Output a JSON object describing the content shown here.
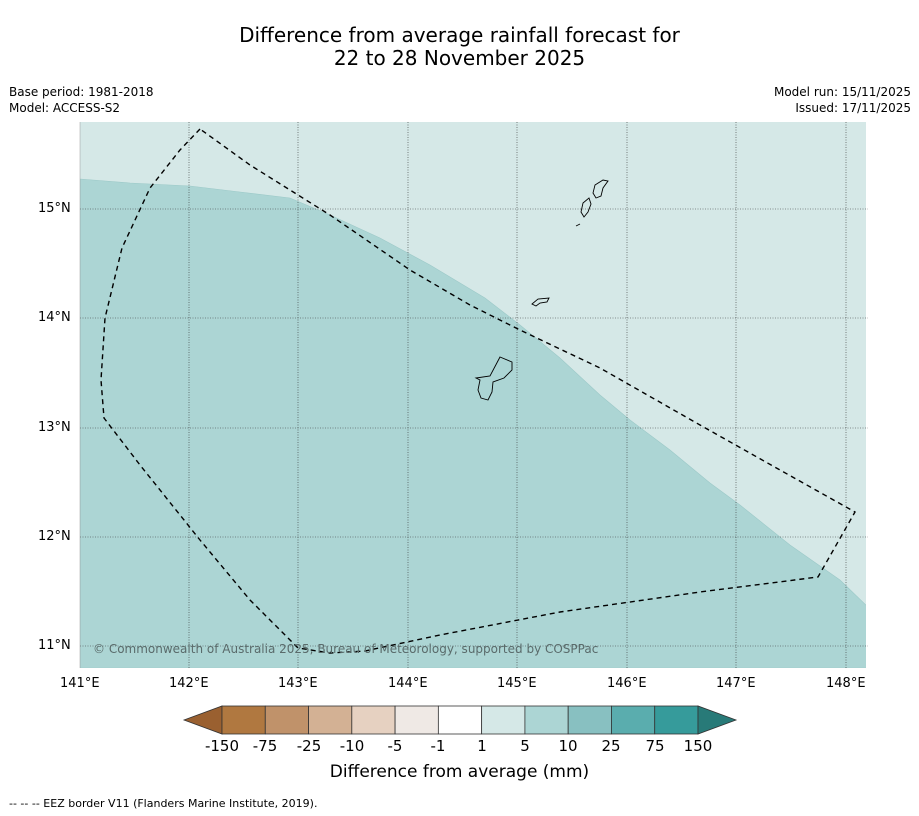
{
  "title_line1": "Difference from average rainfall forecast for",
  "title_line2": "22 to 28 November 2025",
  "base_period": "Base period: 1981-2018",
  "model": "Model: ACCESS-S2",
  "model_run": "Model run: 15/11/2025",
  "issued": "Issued: 17/11/2025",
  "copyright": "© Commonwealth of Australia 2025, Bureau of Meteorology, supported by COSPPac",
  "map": {
    "lon_labels": [
      "141°E",
      "142°E",
      "143°E",
      "144°E",
      "145°E",
      "146°E",
      "147°E",
      "148°E"
    ],
    "lat_labels": [
      "15°N",
      "14°N",
      "13°N",
      "12°N",
      "11°N"
    ],
    "lon_range": [
      141,
      148.2
    ],
    "lat_range": [
      10.8,
      15.8
    ],
    "regions": [
      {
        "category": "1 to 5",
        "color": "#d5e8e7"
      },
      {
        "category": "5 to 10",
        "color": "#acd5d4"
      }
    ]
  },
  "colorbar": {
    "labels": [
      "-150",
      "-75",
      "-25",
      "-10",
      "-5",
      "-1",
      "1",
      "5",
      "10",
      "25",
      "75",
      "150"
    ],
    "colors": [
      "#b07840",
      "#c0926a",
      "#d3b194",
      "#e6d1c1",
      "#efe9e5",
      "#ffffff",
      "#d5e8e7",
      "#acd5d4",
      "#88c0c1",
      "#5aadae",
      "#369b9b"
    ],
    "under_color": "#9a6030",
    "over_color": "#287a78",
    "title": "Difference from average (mm)"
  },
  "footnote": "--  --  -- EEZ border V11 (Flanders Marine Institute, 2019)."
}
